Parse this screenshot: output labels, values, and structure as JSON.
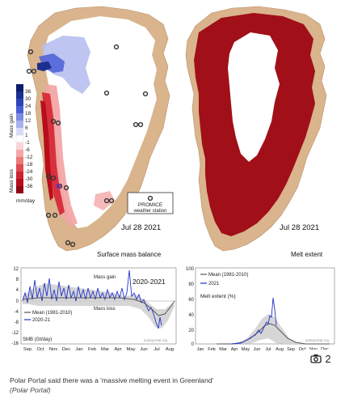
{
  "figure": {
    "smb_map": {
      "date": "Jul 28 2021",
      "title": "Surface mass balance",
      "promice_label_1": "PROMICE",
      "promice_label_2": "weather station",
      "legend": {
        "mass_gain_label": "Mass gain",
        "mass_loss_label": "Mass loss",
        "unit": "mm/day",
        "ticks": [
          "36",
          "30",
          "24",
          "18",
          "12",
          "6",
          "1",
          "-1",
          "-6",
          "-12",
          "-18",
          "-24",
          "-30",
          "-36"
        ]
      },
      "colors": {
        "ice": "#ffffff",
        "land": "#d9b48c",
        "gain_dark": "#1b2f8f",
        "gain_light": "#b7bff0",
        "loss_light": "#f2a7a7",
        "loss_dark": "#b80d1a"
      }
    },
    "melt_map": {
      "date": "Jul 28 2021",
      "title": "Melt extent",
      "colors": {
        "melt": "#a10f19",
        "no_melt": "#ffffff",
        "land": "#d9b48c"
      }
    },
    "smb_chart": {
      "season": "2020-2021",
      "mass_gain_label": "Mass gain",
      "mass_loss_label": "Mass loss",
      "legend": [
        {
          "label": "Mean (1981-2010)",
          "color": "#555555"
        },
        {
          "label": "2020-21",
          "color": "#2233cc"
        }
      ],
      "ylabel": "SMB (Gt/day)",
      "y_ticks": [
        "12",
        "8",
        "4",
        "0",
        "-4",
        "-8",
        "-12",
        "-16"
      ],
      "x_ticks": [
        "Sep",
        "Oct",
        "Nov",
        "Dec",
        "Jan",
        "Feb",
        "Mar",
        "Apr",
        "May",
        "Jun",
        "Jul",
        "Aug"
      ],
      "watermark": "polarportal.org"
    },
    "melt_chart": {
      "ylabel": "Melt extent (%)",
      "legend": [
        {
          "label": "Mean (1981-2010)",
          "color": "#555555"
        },
        {
          "label": "2021",
          "color": "#2233cc"
        }
      ],
      "y_ticks": [
        "100",
        "80",
        "60",
        "40",
        "20",
        "0"
      ],
      "x_ticks": [
        "Jan",
        "Feb",
        "Mar",
        "Apr",
        "May",
        "Jun",
        "Jul",
        "Aug",
        "Sep",
        "Oct",
        "Nov",
        "Dec"
      ],
      "watermark": "polarportal.org"
    }
  },
  "gallery_badge": {
    "icon": "camera-icon",
    "count": "2"
  },
  "caption": {
    "text": "Polar Portal said there was a 'massive melting event in Greenland'",
    "credit": "(Polar Portal)"
  }
}
